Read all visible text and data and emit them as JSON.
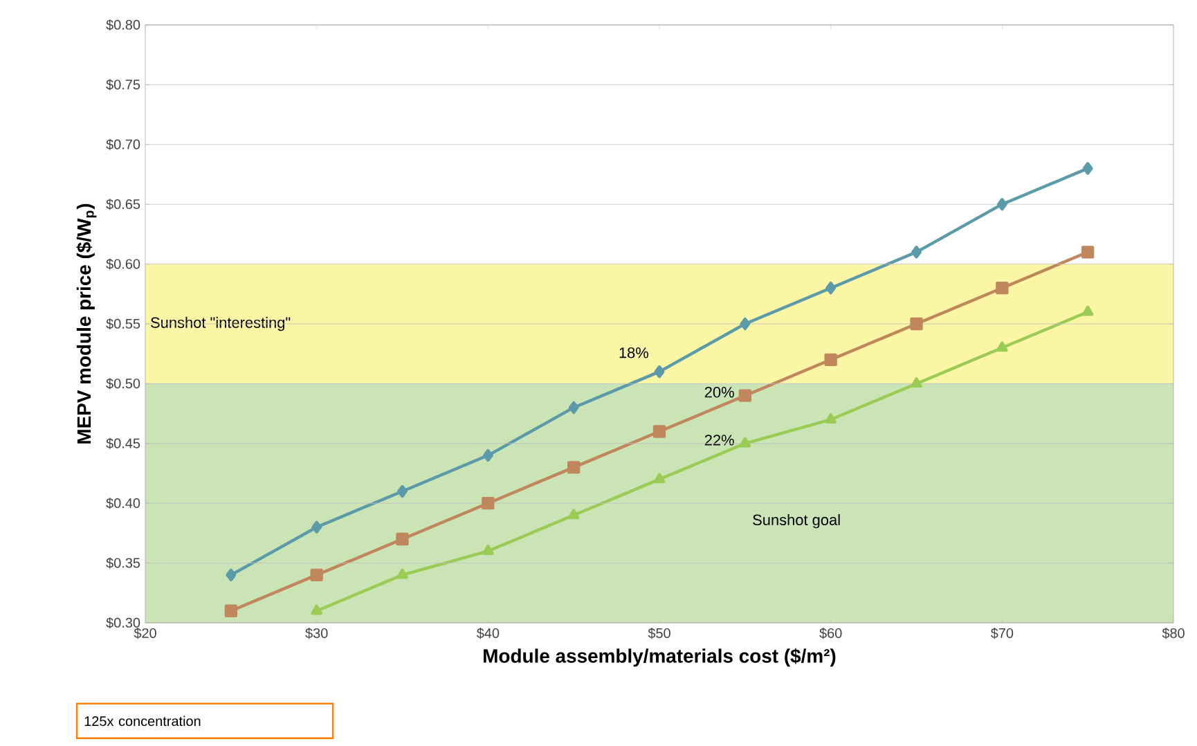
{
  "chart_data": {
    "type": "line",
    "xlabel": "Module assembly/materials cost ($/m²)",
    "ylabel": "MEPV module price ($/W$_{p}$)",
    "x": [
      25,
      30,
      35,
      40,
      45,
      50,
      55,
      60,
      65,
      70,
      75
    ],
    "series": [
      {
        "name": "18%",
        "color": "#5b9aa8",
        "marker": "diamond",
        "values": [
          0.34,
          0.38,
          0.41,
          0.44,
          0.48,
          0.51,
          0.55,
          0.58,
          0.61,
          0.65,
          0.68
        ]
      },
      {
        "name": "20%",
        "color": "#c0875c",
        "marker": "square",
        "values": [
          0.31,
          0.34,
          0.37,
          0.4,
          0.43,
          0.46,
          0.49,
          0.52,
          0.55,
          0.58,
          0.61
        ]
      },
      {
        "name": "22%",
        "color": "#9acb55",
        "marker": "triangle",
        "values": [
          null,
          0.31,
          0.34,
          0.36,
          0.39,
          0.42,
          0.45,
          0.47,
          0.5,
          0.53,
          0.56
        ]
      }
    ],
    "xlim": [
      20,
      80
    ],
    "xticks": [
      {
        "value": 20,
        "label": "$20"
      },
      {
        "value": 30,
        "label": "$30"
      },
      {
        "value": 40,
        "label": "$40"
      },
      {
        "value": 50,
        "label": "$50"
      },
      {
        "value": 60,
        "label": "$60"
      },
      {
        "value": 70,
        "label": "$70"
      },
      {
        "value": 80,
        "label": "$80"
      }
    ],
    "ylim": [
      0.3,
      0.8
    ],
    "yticks": [
      {
        "value": 0.3,
        "label": "$0.30"
      },
      {
        "value": 0.35,
        "label": "$0.35"
      },
      {
        "value": 0.4,
        "label": "$0.40"
      },
      {
        "value": 0.45,
        "label": "$0.45"
      },
      {
        "value": 0.5,
        "label": "$0.50"
      },
      {
        "value": 0.55,
        "label": "$0.55"
      },
      {
        "value": 0.6,
        "label": "$0.60"
      },
      {
        "value": 0.65,
        "label": "$0.65"
      },
      {
        "value": 0.7,
        "label": "$0.70"
      },
      {
        "value": 0.75,
        "label": "$0.75"
      },
      {
        "value": 0.8,
        "label": "$0.80"
      }
    ],
    "bands": [
      {
        "axis": "y",
        "from": 0.5,
        "to": 0.6,
        "label": "Sunshot \"interesting\"",
        "color": "#fbf6a6"
      },
      {
        "axis": "y",
        "from": 0.3,
        "to": 0.5,
        "label": "Sunshot goal",
        "color": "#cbe4b6"
      }
    ],
    "annotations": [
      "125x concentration"
    ],
    "grid": "y",
    "legend": false,
    "line_style": "solid"
  }
}
